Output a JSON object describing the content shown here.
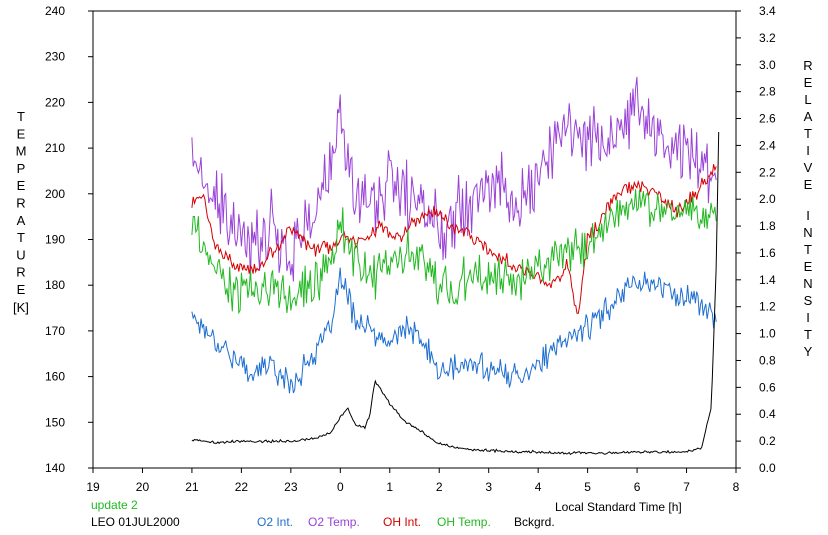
{
  "chart_data": {
    "type": "line",
    "xlabel": "Local Standard Time [h]",
    "y1label": "TEMPERATURE",
    "y1unit": "[K]",
    "y2label": "RELATIVE INTENSITY",
    "xlim": [
      19,
      8
    ],
    "x_ticks": [
      "19",
      "20",
      "21",
      "22",
      "23",
      "0",
      "1",
      "2",
      "3",
      "4",
      "5",
      "6",
      "7",
      "8"
    ],
    "y1lim": [
      140,
      240
    ],
    "y1_ticks": [
      "140",
      "150",
      "160",
      "170",
      "180",
      "190",
      "200",
      "210",
      "220",
      "230",
      "240"
    ],
    "y2lim": [
      0.0,
      3.4
    ],
    "y2_ticks": [
      "0.0",
      "0.2",
      "0.4",
      "0.6",
      "0.8",
      "1.0",
      "1.2",
      "1.4",
      "1.6",
      "1.8",
      "2.0",
      "2.2",
      "2.4",
      "2.6",
      "2.8",
      "3.0",
      "3.2",
      "3.4"
    ],
    "grid": false,
    "legend_position": "bottom",
    "series": [
      {
        "name": "O2 Int.",
        "color": "#1f6fd0",
        "axis": "left",
        "noise": 3.5,
        "x": [
          21.0,
          21.3,
          21.7,
          22.0,
          22.3,
          22.6,
          23.0,
          23.4,
          23.8,
          24.0,
          24.3,
          24.7,
          25.0,
          25.3,
          25.7,
          26.0,
          26.4,
          26.8,
          27.2,
          27.6,
          28.0,
          28.4,
          28.8,
          29.2,
          29.6,
          30.0,
          30.4,
          30.8,
          31.2,
          31.6
        ],
        "y": [
          174,
          170,
          166,
          162,
          161,
          163,
          158,
          164,
          170,
          182,
          173,
          169,
          167,
          171,
          167,
          161,
          162,
          163,
          161,
          160,
          163,
          166,
          170,
          172,
          178,
          181,
          180,
          178,
          177,
          172
        ]
      },
      {
        "name": "O2 Temp.",
        "color": "#9a42d8",
        "axis": "left",
        "noise": 9,
        "x": [
          21.0,
          21.3,
          21.7,
          22.0,
          22.3,
          22.6,
          23.0,
          23.4,
          23.8,
          24.0,
          24.3,
          24.7,
          25.0,
          25.3,
          25.7,
          26.0,
          26.4,
          26.8,
          27.2,
          27.6,
          28.0,
          28.4,
          28.8,
          29.2,
          29.6,
          30.0,
          30.4,
          30.8,
          31.2,
          31.6
        ],
        "y": [
          210,
          200,
          195,
          188,
          190,
          193,
          187,
          195,
          205,
          215,
          200,
          198,
          203,
          200,
          197,
          192,
          198,
          200,
          203,
          196,
          205,
          212,
          215,
          212,
          210,
          220,
          213,
          210,
          210,
          203
        ]
      },
      {
        "name": "OH Int.",
        "color": "#d60000",
        "axis": "left",
        "noise": 2,
        "x": [
          21.0,
          21.2,
          21.5,
          21.8,
          22.1,
          22.4,
          22.7,
          23.0,
          23.4,
          23.8,
          24.0,
          24.4,
          24.8,
          25.2,
          25.6,
          26.0,
          26.4,
          26.8,
          27.2,
          27.6,
          28.0,
          28.3,
          28.6,
          28.8,
          29.0,
          29.3,
          29.6,
          30.0,
          30.4,
          30.8,
          31.2,
          31.6
        ],
        "y": [
          198,
          200,
          188,
          185,
          183,
          184,
          188,
          193,
          188,
          188,
          190,
          190,
          193,
          190,
          195,
          196,
          192,
          190,
          186,
          184,
          182,
          180,
          185,
          172,
          190,
          195,
          200,
          202,
          200,
          196,
          200,
          206
        ]
      },
      {
        "name": "OH Temp.",
        "color": "#22b822",
        "axis": "left",
        "noise": 6,
        "x": [
          21.0,
          21.3,
          21.7,
          22.0,
          22.3,
          22.6,
          23.0,
          23.4,
          23.8,
          24.0,
          24.3,
          24.7,
          25.0,
          25.3,
          25.7,
          26.0,
          26.4,
          26.8,
          27.2,
          27.6,
          28.0,
          28.4,
          28.8,
          29.2,
          29.6,
          30.0,
          30.4,
          30.8,
          31.2,
          31.6
        ],
        "y": [
          193,
          186,
          180,
          178,
          178,
          180,
          177,
          180,
          185,
          193,
          186,
          182,
          185,
          187,
          185,
          180,
          180,
          182,
          181,
          181,
          184,
          186,
          188,
          190,
          196,
          198,
          198,
          197,
          196,
          194
        ]
      },
      {
        "name": "Bckgrd.",
        "color": "#000000",
        "axis": "right",
        "noise": 0.012,
        "x": [
          21.0,
          21.5,
          22.0,
          22.5,
          23.0,
          23.5,
          23.8,
          24.0,
          24.15,
          24.3,
          24.5,
          24.6,
          24.7,
          24.8,
          25.0,
          25.3,
          25.6,
          26.0,
          26.5,
          27.0,
          27.5,
          28.0,
          28.5,
          29.0,
          29.5,
          30.0,
          30.5,
          31.0,
          31.3,
          31.5,
          31.6,
          31.65
        ],
        "y": [
          0.21,
          0.19,
          0.2,
          0.2,
          0.2,
          0.22,
          0.26,
          0.38,
          0.45,
          0.32,
          0.3,
          0.4,
          0.65,
          0.6,
          0.48,
          0.35,
          0.28,
          0.18,
          0.14,
          0.13,
          0.12,
          0.12,
          0.11,
          0.11,
          0.11,
          0.12,
          0.12,
          0.12,
          0.15,
          0.45,
          1.5,
          2.5
        ]
      }
    ]
  },
  "annotations": {
    "update": "update 2",
    "location": "LEO 01JUL2000"
  }
}
